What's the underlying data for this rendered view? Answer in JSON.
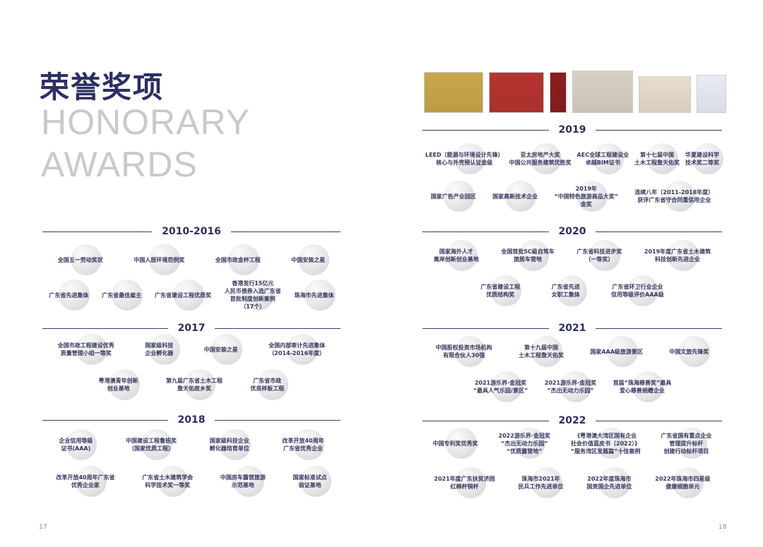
{
  "left_page": {
    "title_cn": "荣誉奖项",
    "title_en_1": "HONORARY",
    "title_en_2": "AWARDS",
    "page_number": "17",
    "sections": [
      {
        "year": "2010-2016",
        "rows": [
          [
            "全国五一劳动奖状",
            "中国人居环境范例奖",
            "全国市政金杯工程",
            "中国安装之星"
          ],
          [
            "广东省先进集体",
            "广东省最佳雇主",
            "广东省建设工程优质奖",
            "香港发行15亿元\n人民币债券入选广东省\n首批制度创新案例\n（17个）",
            "珠海市先进集体"
          ]
        ]
      },
      {
        "year": "2017",
        "rows": [
          [
            "全国市政工程建设优秀\n质量管理小组一等奖",
            "国家级科技\n企业孵化器",
            "中国安装之星",
            "全国内部审计先进集体\n（2014-2016年度）"
          ],
          [
            "粤港澳青年创新\n创业基地",
            "第九届广东省土木工程\n詹天佑故乡奖",
            "广东省市政\n优良样板工程"
          ]
        ]
      },
      {
        "year": "2018",
        "rows": [
          [
            "企业信用等级\n证书(AAA)",
            "中国建设工程鲁班奖\n（国家优质工程）",
            "国家级科技企业\n孵化器培育单位",
            "改革开放40周年\n广东省优秀企业"
          ],
          [
            "改革开放40周年广东省\n优秀企业家",
            "广东省土木建筑学会\n科学技术奖一等奖",
            "中国房车露营旅游\n示范基地",
            "国家标准试点\n验证基地"
          ]
        ]
      }
    ]
  },
  "right_page": {
    "page_number": "18",
    "certificate_colors": [
      "#c9a64a",
      "#b5342f",
      "#8a1e1e",
      "#d8d0c4",
      "#e8dccb",
      "#e6ecf5"
    ],
    "sections": [
      {
        "year": "2019",
        "rows": [
          [
            "LEED（能源与环境设计先锋）\n核心与外壳预认证金级",
            "亚太房地产大奖\n中国公共服务建筑优胜奖",
            "AEC全球工程建设业\n卓越BIM证书",
            "第十七届中国\n土木工程詹天佑奖",
            "华夏建设科学\n技术奖二等奖"
          ],
          [
            "国家广告产业园区",
            "国家高新技术企业",
            "2019年\n“中国特色旅游商品大奖”\n金奖",
            "连续八年（2011-2018年度）\n获评广东省守合同重信用企业"
          ]
        ]
      },
      {
        "year": "2020",
        "rows": [
          [
            "国家海外人才\n离岸创新创业基地",
            "全国首批5C级自驾车\n旅居车营地",
            "广东省科技进步奖\n（一等奖）",
            "2019年度广东省土木建筑\n科技创新先进企业"
          ],
          [
            "广东省建设工程\n优质结构奖",
            "广东省先进\n女职工集体",
            "广东省环卫行业企业\n信用等级评价AAA级"
          ]
        ]
      },
      {
        "year": "2021",
        "rows": [
          [
            "中国股权投资市场机构\n有限合伙人30强",
            "第十九届中国\n土木工程詹天佑奖",
            "国家AAA级旅游景区",
            "中国文旅先锋奖"
          ],
          [
            "2021游乐界·金冠奖\n“最具人气乐园/景区”",
            "2021游乐界·金冠奖\n“杰出无动力乐园”",
            "首届“珠海慈善奖”最具\n爱心慈善捐赠企业"
          ]
        ]
      },
      {
        "year": "2022",
        "rows": [
          [
            "中国专利奖优秀奖",
            "2022游乐界·金冠奖\n“杰出无动力乐园”\n“优质露营地”",
            "《粤港澳大湾区国有企业\n社会价值蓝皮书（2022）》\n“服务湾区发展篇”十佳案例",
            "广东省国有重点企业\n管理提升标杆\n创建行动标杆项目"
          ],
          [
            "2021年度广东扶贫济困\n红棉杯铜杯",
            "珠海市2021年\n民兵工作先进单位",
            "2022年度珠海市\n国资国企先进单位",
            "2022年珠海市四星级\n健康细胞单元"
          ]
        ]
      }
    ]
  }
}
